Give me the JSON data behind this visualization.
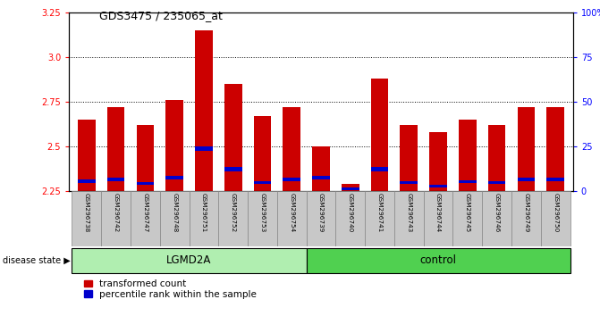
{
  "title": "GDS3475 / 235065_at",
  "samples": [
    "GSM296738",
    "GSM296742",
    "GSM296747",
    "GSM296748",
    "GSM296751",
    "GSM296752",
    "GSM296753",
    "GSM296754",
    "GSM296739",
    "GSM296740",
    "GSM296741",
    "GSM296743",
    "GSM296744",
    "GSM296745",
    "GSM296746",
    "GSM296749",
    "GSM296750"
  ],
  "groups": [
    "LGMD2A",
    "LGMD2A",
    "LGMD2A",
    "LGMD2A",
    "LGMD2A",
    "LGMD2A",
    "LGMD2A",
    "LGMD2A",
    "control",
    "control",
    "control",
    "control",
    "control",
    "control",
    "control",
    "control",
    "control"
  ],
  "red_values": [
    2.65,
    2.72,
    2.62,
    2.76,
    3.15,
    2.85,
    2.67,
    2.72,
    2.5,
    2.29,
    2.88,
    2.62,
    2.58,
    2.65,
    2.62,
    2.72,
    2.72
  ],
  "blue_bottom": [
    2.295,
    2.305,
    2.285,
    2.315,
    2.475,
    2.36,
    2.29,
    2.305,
    2.315,
    2.258,
    2.36,
    2.29,
    2.272,
    2.295,
    2.29,
    2.305,
    2.305
  ],
  "blue_height": [
    0.022,
    0.022,
    0.018,
    0.022,
    0.028,
    0.028,
    0.018,
    0.022,
    0.022,
    0.012,
    0.028,
    0.018,
    0.016,
    0.018,
    0.018,
    0.022,
    0.022
  ],
  "ymin": 2.25,
  "ymax": 3.25,
  "yticks_left": [
    2.25,
    2.5,
    2.75,
    3.0,
    3.25
  ],
  "yticks_right": [
    0,
    25,
    50,
    75,
    100
  ],
  "yticks_right_labels": [
    "0",
    "25",
    "50",
    "75",
    "100%"
  ],
  "bar_color_red": "#CC0000",
  "bar_color_blue": "#0000CC",
  "lgmd2a_color": "#B0EEB0",
  "control_color": "#50D050",
  "label_bg": "#C8C8C8",
  "legend_red": "transformed count",
  "legend_blue": "percentile rank within the sample",
  "disease_state_label": "disease state"
}
